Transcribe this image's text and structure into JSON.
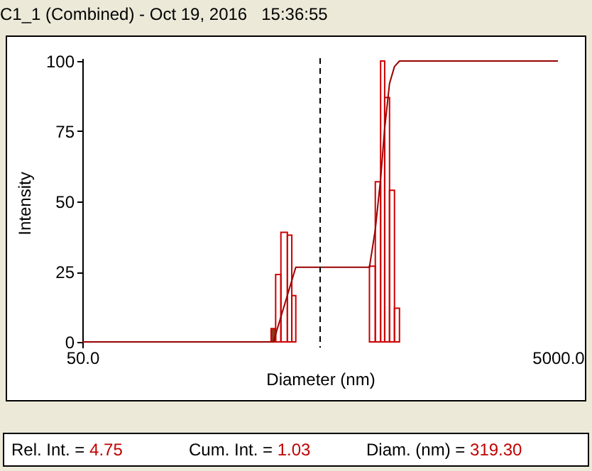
{
  "chart_data": {
    "type": "histogram",
    "title": "C1_1 (Combined) - Oct 19, 2016   15:36:55",
    "xlabel": "Diameter (nm)",
    "ylabel": "Intensity",
    "log": "x",
    "xlim": [
      50,
      5000
    ],
    "xticks": [
      {
        "value": 50,
        "label": "50.0"
      },
      {
        "value": 5000,
        "label": "5000.0"
      }
    ],
    "ylim": [
      -2,
      101
    ],
    "yticks": [
      0,
      25,
      50,
      75,
      100
    ],
    "grid": false,
    "series": [
      {
        "type": "histogram",
        "bins": [
          311,
          325,
          342,
          364,
          380,
          395
        ],
        "values": [
          4.75,
          24,
          39,
          38,
          16.5
        ],
        "colors": [
          "#8b3a1a",
          "#cc0000",
          "#cc0000",
          "#cc0000",
          "#cc0000"
        ]
      },
      {
        "type": "histogram",
        "bins": [
          806,
          853,
          898,
          934,
          979,
          1027,
          1078
        ],
        "values": [
          27,
          57,
          100,
          87,
          54,
          12
        ],
        "colors": [
          "#cc0000",
          "#cc0000",
          "#cc0000",
          "#cc0000",
          "#cc0000",
          "#cc0000"
        ]
      },
      {
        "type": "line",
        "color": "#990000",
        "x": [
          50,
          318,
          395,
          806,
          853,
          898,
          934,
          979,
          1027,
          1078,
          1150,
          5000
        ],
        "values": [
          0,
          0,
          26.6,
          26.6,
          40,
          58,
          76,
          92,
          98,
          100,
          100,
          100
        ]
      }
    ],
    "ref_lines": [
      {
        "axis": "x",
        "value": 500,
        "color": "#000000",
        "line_style": "dashed"
      }
    ],
    "annotations": [
      "Rel. Int. = 4.75",
      "Cum. Int. = 1.03",
      "Diam. (nm) = 319.30"
    ]
  }
}
